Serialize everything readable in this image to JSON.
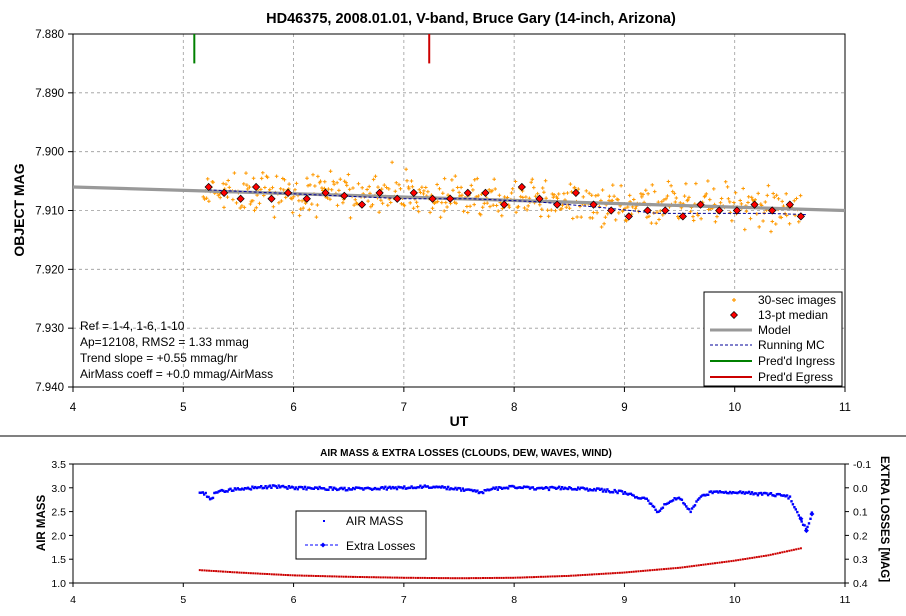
{
  "chart_data": [
    {
      "type": "scatter",
      "title": "HD46375, 2008.01.01, V-band, Bruce Gary (14-inch, Arizona)",
      "xlabel": "UT",
      "ylabel": "OBJECT MAG",
      "xlim": [
        4,
        11
      ],
      "ylim": [
        7.94,
        7.88
      ],
      "y_inverted": true,
      "grid": true,
      "x_ticks": [
        "4",
        "5",
        "6",
        "7",
        "8",
        "9",
        "10",
        "11"
      ],
      "y_ticks": [
        "7.880",
        "7.890",
        "7.900",
        "7.910",
        "7.920",
        "7.930",
        "7.940"
      ],
      "annotations": [
        "Ref = 1-4, 1-6, 1-10",
        "Ap=12108, RMS2 = 1.33 mmag",
        "Trend slope = +0.55 mmag/hr",
        "AirMass coeff = +0.0 mmag/AirMass"
      ],
      "legend_position": "bottom-right",
      "series": [
        {
          "name": "30-sec images",
          "style": "orange-plus",
          "color": "#ff9900",
          "x_range": [
            5.18,
            10.6
          ],
          "trend": {
            "x": [
              5.18,
              10.6
            ],
            "y": [
              7.9065,
              7.9095
            ]
          },
          "scatter_mmag": 2.6
        },
        {
          "name": "13-pt median",
          "style": "red-diamond",
          "color": "#ff0000",
          "x": [
            5.23,
            5.37,
            5.52,
            5.66,
            5.8,
            5.95,
            6.12,
            6.29,
            6.46,
            6.62,
            6.78,
            6.94,
            7.09,
            7.26,
            7.42,
            7.58,
            7.74,
            7.91,
            8.07,
            8.23,
            8.39,
            8.56,
            8.72,
            8.88,
            9.04,
            9.21,
            9.37,
            9.53,
            9.69,
            9.86,
            10.02,
            10.18,
            10.34,
            10.5,
            10.6
          ],
          "y": [
            7.906,
            7.907,
            7.908,
            7.906,
            7.908,
            7.907,
            7.908,
            7.907,
            7.9075,
            7.909,
            7.907,
            7.908,
            7.907,
            7.908,
            7.908,
            7.907,
            7.907,
            7.909,
            7.906,
            7.908,
            7.909,
            7.907,
            7.909,
            7.91,
            7.911,
            7.91,
            7.91,
            7.911,
            7.909,
            7.91,
            7.91,
            7.909,
            7.91,
            7.909,
            7.911
          ]
        },
        {
          "name": "Model",
          "style": "gray-thick-line",
          "color": "#999999",
          "x": [
            4,
            11
          ],
          "y": [
            7.906,
            7.91
          ]
        },
        {
          "name": "Running MC",
          "style": "blue-dashed-line",
          "color": "#000099",
          "x": [
            5.23,
            5.8,
            6.4,
            7.0,
            7.6,
            8.2,
            8.8,
            9.3,
            9.8,
            10.3,
            10.65
          ],
          "y": [
            7.9065,
            7.907,
            7.9075,
            7.908,
            7.908,
            7.9085,
            7.9095,
            7.9105,
            7.9105,
            7.9105,
            7.9107
          ]
        },
        {
          "name": "Pred'd Ingress",
          "style": "green-vertical",
          "color": "#008000",
          "x": [
            5.1
          ],
          "y_span": [
            7.88,
            7.885
          ]
        },
        {
          "name": "Pred'd Egress",
          "style": "red-vertical",
          "color": "#cc0000",
          "x": [
            7.23
          ],
          "y_span": [
            7.88,
            7.885
          ]
        }
      ]
    },
    {
      "type": "scatter",
      "title": "AIR MASS & EXTRA LOSSES (CLOUDS, DEW, WAVES, WIND)",
      "xlabel": "",
      "ylabel": "AIR MASS",
      "y2label": "EXTRA LOSSES [MAG]",
      "xlim": [
        4,
        11
      ],
      "ylim": [
        1.0,
        3.5
      ],
      "y2lim": [
        -0.1,
        0.4
      ],
      "y2_inverted": true,
      "grid": false,
      "x_ticks": [
        "4",
        "5",
        "6",
        "7",
        "8",
        "9",
        "10",
        "11"
      ],
      "y_ticks": [
        "1.0",
        "1.5",
        "2.0",
        "2.5",
        "3.0",
        "3.5"
      ],
      "y2_ticks": [
        "-0.1",
        "0.0",
        "0.1",
        "0.2",
        "0.3",
        "0.4"
      ],
      "legend_position": "center-left",
      "series": [
        {
          "name": "AIR MASS",
          "style": "red-dots",
          "color": "#cc0000",
          "x": [
            5.15,
            5.5,
            6.0,
            6.5,
            7.0,
            7.5,
            8.0,
            8.5,
            9.0,
            9.5,
            10.0,
            10.3,
            10.6
          ],
          "y": [
            1.27,
            1.22,
            1.16,
            1.13,
            1.11,
            1.1,
            1.11,
            1.15,
            1.22,
            1.32,
            1.47,
            1.58,
            1.73
          ]
        },
        {
          "name": "Extra Losses",
          "style": "blue-dots-dashed",
          "color": "#0000ff",
          "x": [
            5.15,
            5.2,
            5.25,
            5.3,
            5.5,
            5.8,
            6.0,
            6.5,
            7.0,
            7.2,
            7.5,
            7.7,
            7.8,
            8.0,
            8.2,
            8.5,
            8.8,
            9.0,
            9.2,
            9.3,
            9.4,
            9.5,
            9.6,
            9.7,
            9.8,
            9.9,
            10.0,
            10.2,
            10.4,
            10.5,
            10.6,
            10.65,
            10.7
          ],
          "y": [
            0.02,
            0.025,
            0.05,
            0.015,
            0.005,
            -0.005,
            0.0,
            0.005,
            0.0,
            -0.005,
            0.005,
            0.02,
            0.005,
            -0.005,
            0.005,
            0.0,
            0.01,
            0.02,
            0.05,
            0.1,
            0.06,
            0.04,
            0.1,
            0.03,
            0.02,
            0.015,
            0.02,
            0.025,
            0.03,
            0.04,
            0.13,
            0.18,
            0.11
          ]
        }
      ]
    }
  ]
}
